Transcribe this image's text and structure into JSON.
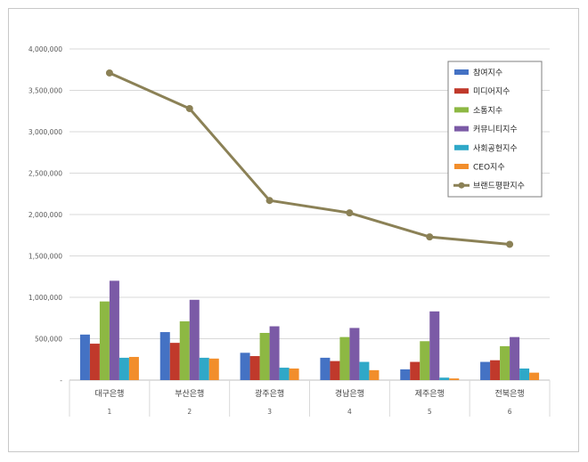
{
  "chart_data": {
    "type": "bar",
    "categories": [
      "대구은행",
      "부산은행",
      "광주은행",
      "경남은행",
      "제주은행",
      "전북은행"
    ],
    "sub_categories": [
      "1",
      "2",
      "3",
      "4",
      "5",
      "6"
    ],
    "y_ticks": [
      "-",
      "500,000",
      "1,000,000",
      "1,500,000",
      "2,000,000",
      "2,500,000",
      "3,000,000",
      "3,500,000",
      "4,000,000"
    ],
    "ylim": [
      0,
      4000000
    ],
    "grid": true,
    "legend_position": "top-right",
    "series": [
      {
        "name": "참여지수",
        "type": "bar",
        "color": "#4472C4",
        "values": [
          550000,
          580000,
          330000,
          270000,
          130000,
          220000
        ]
      },
      {
        "name": "미디어지수",
        "type": "bar",
        "color": "#C0392B",
        "values": [
          440000,
          450000,
          290000,
          230000,
          220000,
          240000
        ]
      },
      {
        "name": "소통지수",
        "type": "bar",
        "color": "#8DB843",
        "values": [
          950000,
          710000,
          570000,
          520000,
          470000,
          410000
        ]
      },
      {
        "name": "커뮤니티지수",
        "type": "bar",
        "color": "#7B5AA6",
        "values": [
          1200000,
          970000,
          650000,
          630000,
          830000,
          520000
        ]
      },
      {
        "name": "사회공헌지수",
        "type": "bar",
        "color": "#2FA8C8",
        "values": [
          270000,
          270000,
          150000,
          220000,
          30000,
          140000
        ]
      },
      {
        "name": "CEO지수",
        "type": "bar",
        "color": "#F28E2B",
        "values": [
          280000,
          260000,
          140000,
          120000,
          20000,
          90000
        ]
      },
      {
        "name": "브랜드평판지수",
        "type": "line",
        "color": "#8B8156",
        "values": [
          3710000,
          3280000,
          2170000,
          2020000,
          1730000,
          1640000
        ]
      }
    ]
  }
}
